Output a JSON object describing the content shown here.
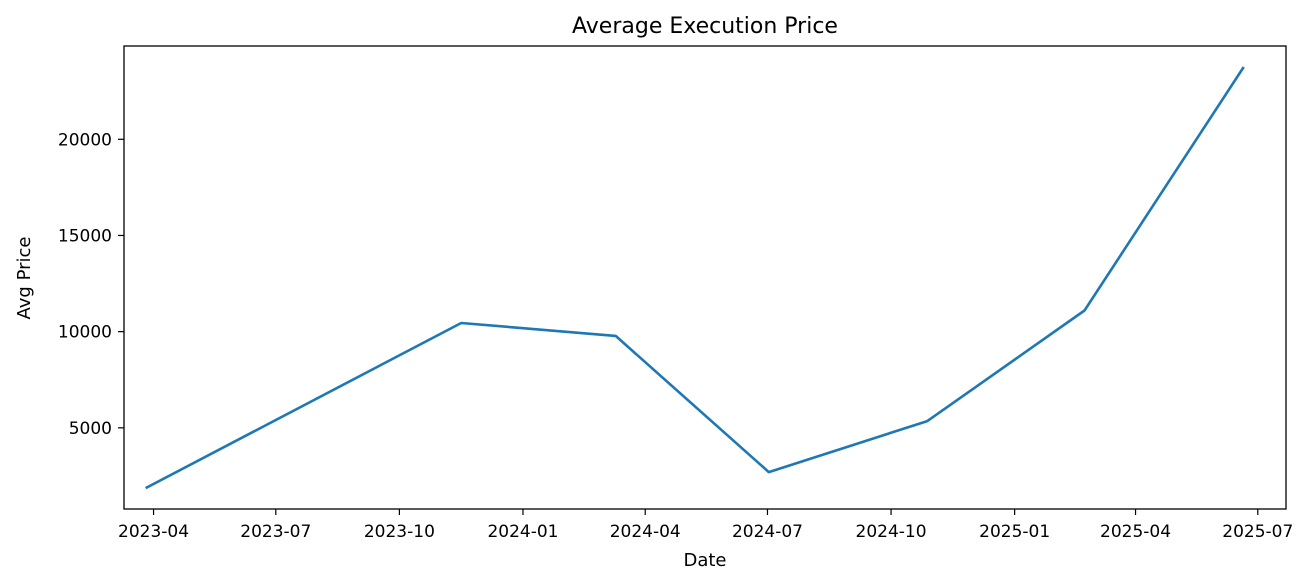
{
  "chart_data": {
    "type": "line",
    "title": "Average Execution Price",
    "xlabel": "Date",
    "ylabel": "Avg Price",
    "x_tick_labels": [
      "2023-04",
      "2023-07",
      "2023-10",
      "2024-01",
      "2024-04",
      "2024-07",
      "2024-10",
      "2025-01",
      "2025-04",
      "2025-07"
    ],
    "x_tick_dates": [
      "2023-04-01",
      "2023-07-01",
      "2023-10-01",
      "2024-01-01",
      "2024-04-01",
      "2024-07-01",
      "2024-10-01",
      "2025-01-01",
      "2025-04-01",
      "2025-07-01"
    ],
    "y_tick_labels": [
      "5000",
      "10000",
      "15000",
      "20000"
    ],
    "y_tick_values": [
      5000,
      10000,
      15000,
      20000
    ],
    "xlim": [
      "2023-03-10",
      "2025-07-22"
    ],
    "ylim": [
      780,
      24850
    ],
    "grid": false,
    "series": [
      {
        "color": "#1f77b4",
        "points": [
          {
            "x": "2023-03-27",
            "y": 1900
          },
          {
            "x": "2023-11-16",
            "y": 10450
          },
          {
            "x": "2024-03-10",
            "y": 9780
          },
          {
            "x": "2024-07-02",
            "y": 2700
          },
          {
            "x": "2024-10-28",
            "y": 5350
          },
          {
            "x": "2025-02-22",
            "y": 11100
          },
          {
            "x": "2025-06-20",
            "y": 23700
          }
        ]
      }
    ]
  }
}
